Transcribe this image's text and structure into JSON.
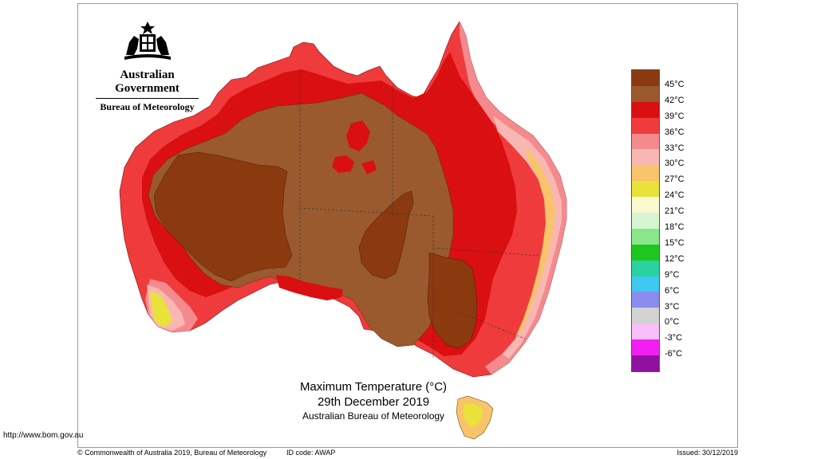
{
  "header": {
    "government": "Australian Government",
    "bureau": "Bureau of Meteorology"
  },
  "title": {
    "main": "Maximum Temperature (°C)",
    "date": "29th December 2019",
    "org": "Australian Bureau of Meteorology"
  },
  "url": "http://www.bom.gov.au",
  "footer": {
    "copyright": "© Commonwealth of Australia 2019, Bureau of Meteorology",
    "id_code": "ID code: AWAP",
    "issued": "Issued: 30/12/2019"
  },
  "legend": {
    "colors": [
      "#8b3a10",
      "#9a5a2e",
      "#d90f12",
      "#ef3b3c",
      "#f58a8e",
      "#f8b7b2",
      "#f8c36a",
      "#e8e23a",
      "#fafad0",
      "#d6f5d0",
      "#8ae68a",
      "#1fc61f",
      "#2ad2a0",
      "#3fc8f0",
      "#8a8cf0",
      "#d2d2d2",
      "#f8bff8",
      "#f020f0",
      "#9010a0"
    ],
    "labels": [
      "45°C",
      "42°C",
      "39°C",
      "36°C",
      "33°C",
      "30°C",
      "27°C",
      "24°C",
      "21°C",
      "18°C",
      "15°C",
      "12°C",
      "9°C",
      "6°C",
      "3°C",
      "0°C",
      "-3°C",
      "-6°C"
    ]
  },
  "map_colors": {
    "band_36": "#ef3b3c",
    "band_39": "#d90f12",
    "band_42": "#9a5a2e",
    "band_45": "#8b3a10",
    "band_33": "#f58a8e",
    "band_30": "#f8b7b2",
    "band_27": "#f8c36a",
    "band_24": "#e8e23a"
  }
}
